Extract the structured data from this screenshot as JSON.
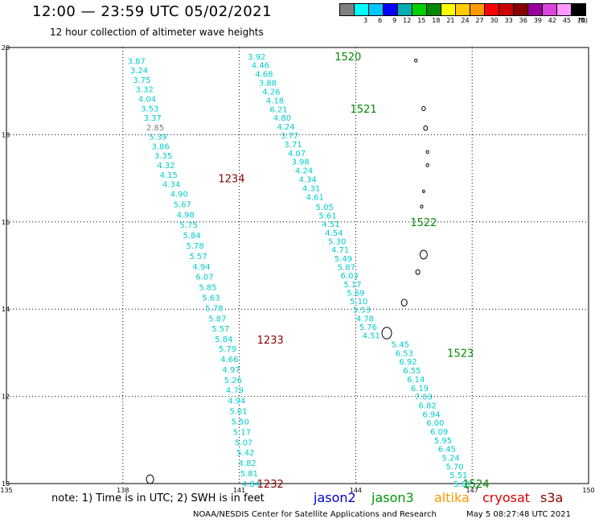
{
  "header": {
    "title": "12:00 — 23:59 UTC 05/02/2021",
    "subtitle": "12 hour collection of altimeter wave heights"
  },
  "legend": {
    "colors": [
      "#808080",
      "#00ffff",
      "#00c8ff",
      "#0000ff",
      "#00b0b0",
      "#00d000",
      "#008800",
      "#ffff00",
      "#ffcc00",
      "#ff9900",
      "#ff0000",
      "#cc0000",
      "#880000",
      "#990099",
      "#dd44dd",
      "#ff99ff",
      "#000000"
    ],
    "labels": [
      "3",
      "6",
      "9",
      "12",
      "15",
      "18",
      "21",
      "24",
      "27",
      "30",
      "33",
      "36",
      "39",
      "42",
      "45",
      "70"
    ],
    "unit": "(ft)"
  },
  "map": {
    "lon_range": [
      135,
      150
    ],
    "lat_range": [
      10,
      20
    ],
    "x_ticks": [
      "135",
      "138",
      "141",
      "144",
      "147",
      "150"
    ],
    "y_ticks": [
      "20",
      "18",
      "16",
      "14",
      "12",
      "10"
    ],
    "tracks": [
      {
        "pass_label": "1234",
        "label_color": "#8b0000",
        "label_pos": [
          140.8,
          17.0
        ],
        "start": [
          138.35,
          19.7
        ],
        "end": [
          139.25,
          16.87
        ],
        "values": [
          "3.87",
          "3.24",
          "3.75",
          "3.32",
          "4.04",
          "3.53",
          "3.37",
          "2.85",
          "5.39",
          "3.86",
          "3.35",
          "4.32",
          "4.15",
          "4.34"
        ],
        "colors": {
          "2.85": "#808080"
        }
      },
      {
        "pass_label": "1233",
        "label_color": "#8b0000",
        "label_pos": [
          141.8,
          13.3
        ],
        "start": [
          139.45,
          16.65
        ],
        "end": [
          140.6,
          13.32
        ],
        "values": [
          "4.90",
          "5.67",
          "4.98",
          "5.75",
          "5.84",
          "5.78",
          "5.57",
          "4.94",
          "6.07",
          "5.85",
          "5.63",
          "5.78",
          "5.87",
          "5.57",
          "5.84"
        ]
      },
      {
        "pass_label": "1232",
        "label_color": "#8b0000",
        "label_pos": [
          141.8,
          10.0
        ],
        "start": [
          140.7,
          13.1
        ],
        "end": [
          141.3,
          10.0
        ],
        "values": [
          "5.79",
          "4.66",
          "4.97",
          "5.26",
          "4.79",
          "4.94",
          "5.01",
          "5.50",
          "5.17",
          "5.07",
          "5.42",
          "4.82",
          "5.81",
          "4.84"
        ]
      },
      {
        "pass_label": "1520",
        "label_color": "#008800",
        "label_pos": [
          143.8,
          19.8
        ],
        "start": [
          141.45,
          19.8
        ],
        "end": [
          142.95,
          16.58
        ],
        "values": [
          "3.92",
          "4.46",
          "4.68",
          "3.88",
          "4.26",
          "4.18",
          "6.21",
          "4.80",
          "4.24",
          "3.77",
          "3.71",
          "4.07",
          "3.98",
          "4.24",
          "4.34",
          "4.31",
          "4.61"
        ]
      },
      {
        "pass_label": "1521",
        "label_color": "#008800",
        "label_pos": [
          144.2,
          18.6
        ],
        "start": null,
        "end": null,
        "values": []
      },
      {
        "pass_label": "1522",
        "label_color": "#008800",
        "label_pos": [
          145.75,
          16.0
        ],
        "start": [
          143.2,
          16.35
        ],
        "end": [
          144.4,
          13.4
        ],
        "values": [
          "5.05",
          "5.61",
          "4.51",
          "4.54",
          "5.30",
          "4.71",
          "5.49",
          "5.87",
          "6.03",
          "5.17",
          "5.69",
          "5.10",
          "5.53",
          "4.78",
          "5.76",
          "4.51"
        ]
      },
      {
        "pass_label": "1523",
        "label_color": "#008800",
        "label_pos": [
          146.7,
          13.0
        ],
        "start": [
          145.15,
          13.2
        ],
        "end": [
          146.75,
          10.0
        ],
        "values": [
          "5.45",
          "6.53",
          "6.92",
          "6.55",
          "6.14",
          "6.19",
          "7.03",
          "6.82",
          "6.94",
          "6.00",
          "6.09",
          "5.95",
          "6.45",
          "5.24",
          "5.70",
          "5.51",
          "5.61"
        ]
      },
      {
        "pass_label": "1524",
        "label_color": "#008800",
        "label_pos": [
          147.1,
          10.0
        ],
        "start": null,
        "end": null,
        "values": []
      }
    ]
  },
  "footer": {
    "note": "note:  1) Time is in UTC;  2) SWH is in feet",
    "satellites": [
      {
        "name": "jason2",
        "color": "#0000cc",
        "left": 390
      },
      {
        "name": "jason3",
        "color": "#009900",
        "left": 462
      },
      {
        "name": "altika",
        "color": "#ff9900",
        "left": 540
      },
      {
        "name": "cryosat",
        "color": "#dd0000",
        "left": 600
      },
      {
        "name": "s3a",
        "color": "#8b0000",
        "left": 672
      }
    ],
    "credit": "NOAA/NESDIS Center for Satellite Applications and Research",
    "timestamp": "May  5 08:27:48 UTC 2021"
  }
}
